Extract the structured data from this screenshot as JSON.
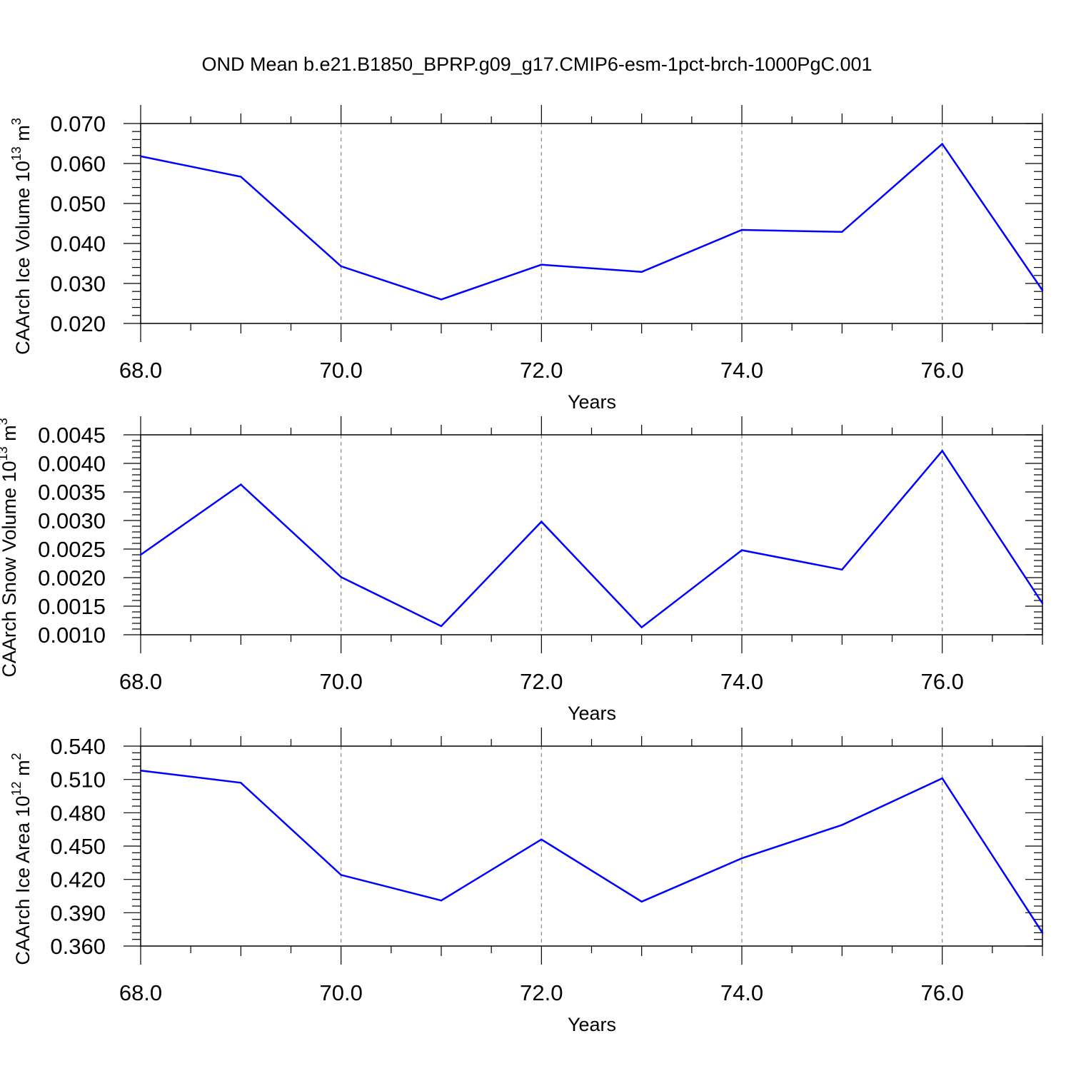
{
  "title": "OND Mean b.e21.B1850_BPRP.g09_g17.CMIP6-esm-1pct-brch-1000PgC.001",
  "colors": {
    "line": "#0000ff",
    "axis": "#000000",
    "grid": "#888888"
  },
  "chart_data": [
    {
      "type": "line",
      "ylabel": "CAArch Ice Volume 10",
      "ylabel_exp": "13",
      "ylabel_unit": " m",
      "ylabel_unit_exp": "3",
      "xlabel": "Years",
      "xlim": [
        68,
        77
      ],
      "ylim": [
        0.02,
        0.07
      ],
      "grid": "vertical dashed at major x ticks",
      "x_ticks": [
        68,
        70,
        72,
        74,
        76
      ],
      "x_tick_labels": [
        "68.0",
        "70.0",
        "72.0",
        "74.0",
        "76.0"
      ],
      "y_ticks": [
        0.02,
        0.03,
        0.04,
        0.05,
        0.06,
        0.07
      ],
      "y_tick_labels": [
        "0.020",
        "0.030",
        "0.040",
        "0.050",
        "0.060",
        "0.070"
      ],
      "x": [
        68,
        69,
        70,
        71,
        72,
        73,
        74,
        75,
        76,
        77
      ],
      "values": [
        0.0618,
        0.0567,
        0.0343,
        0.026,
        0.0347,
        0.0329,
        0.0434,
        0.0429,
        0.0649,
        0.0283
      ]
    },
    {
      "type": "line",
      "ylabel": "CAArch Snow Volume 10",
      "ylabel_exp": "13",
      "ylabel_unit": " m",
      "ylabel_unit_exp": "3",
      "xlabel": "Years",
      "xlim": [
        68,
        77
      ],
      "ylim": [
        0.001,
        0.0045
      ],
      "grid": "vertical dashed at major x ticks",
      "x_ticks": [
        68,
        70,
        72,
        74,
        76
      ],
      "x_tick_labels": [
        "68.0",
        "70.0",
        "72.0",
        "74.0",
        "76.0"
      ],
      "y_ticks": [
        0.001,
        0.0015,
        0.002,
        0.0025,
        0.003,
        0.0035,
        0.004,
        0.0045
      ],
      "y_tick_labels": [
        "0.0010",
        "0.0015",
        "0.0020",
        "0.0025",
        "0.0030",
        "0.0035",
        "0.0040",
        "0.0045"
      ],
      "x": [
        68,
        69,
        70,
        71,
        72,
        73,
        74,
        75,
        76,
        77
      ],
      "values": [
        0.0024,
        0.00363,
        0.00201,
        0.00115,
        0.00298,
        0.00113,
        0.00248,
        0.00214,
        0.00422,
        0.00155
      ]
    },
    {
      "type": "line",
      "ylabel": "CAArch Ice Area 10",
      "ylabel_exp": "12",
      "ylabel_unit": " m",
      "ylabel_unit_exp": "2",
      "xlabel": "Years",
      "xlim": [
        68,
        77
      ],
      "ylim": [
        0.36,
        0.54
      ],
      "grid": "vertical dashed at major x ticks",
      "x_ticks": [
        68,
        70,
        72,
        74,
        76
      ],
      "x_tick_labels": [
        "68.0",
        "70.0",
        "72.0",
        "74.0",
        "76.0"
      ],
      "y_ticks": [
        0.36,
        0.39,
        0.42,
        0.45,
        0.48,
        0.51,
        0.54
      ],
      "y_tick_labels": [
        "0.360",
        "0.390",
        "0.420",
        "0.450",
        "0.480",
        "0.510",
        "0.540"
      ],
      "x": [
        68,
        69,
        70,
        71,
        72,
        73,
        74,
        75,
        76,
        77
      ],
      "values": [
        0.518,
        0.507,
        0.424,
        0.401,
        0.456,
        0.4,
        0.439,
        0.469,
        0.511,
        0.372
      ]
    }
  ]
}
